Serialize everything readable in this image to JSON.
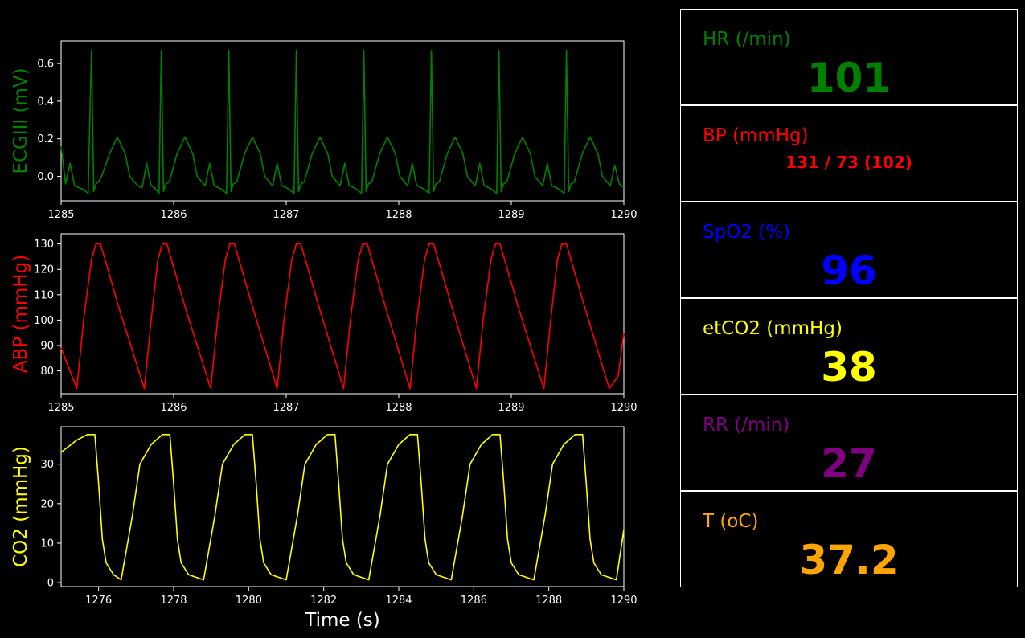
{
  "colors": {
    "ecg": "#008000",
    "abp": "#ff0000",
    "co2": "#ffff00",
    "spo2": "#0000ff",
    "rr": "#800080",
    "temp": "#ffa500",
    "axis": "#ffffff",
    "background": "#000000"
  },
  "chart_data": [
    {
      "id": "ecg",
      "type": "line",
      "ylabel": "ECGIII (mV)",
      "xlim": [
        1285,
        1290
      ],
      "ylim": [
        -0.13,
        0.72
      ],
      "xticks": [
        1285,
        1286,
        1287,
        1288,
        1289,
        1290
      ],
      "yticks": [
        0.0,
        0.2,
        0.4,
        0.6
      ],
      "ytick_labels": [
        "0.0",
        "0.2",
        "0.4",
        "0.6"
      ],
      "series": [
        {
          "color": "#008000",
          "x": [
            1285.0,
            1285.04,
            1285.08,
            1285.12,
            1285.16,
            1285.2,
            1285.24,
            1285.27,
            1285.29,
            1285.31,
            1285.33,
            1285.36,
            1285.43,
            1285.5,
            1285.57,
            1285.61,
            1285.68,
            1285.72,
            1285.76,
            1285.8,
            1285.83,
            1285.87,
            1285.89,
            1285.91,
            1285.93,
            1285.96,
            1286.03,
            1286.1,
            1286.17,
            1286.21,
            1286.28,
            1286.32,
            1286.36,
            1286.4,
            1286.43,
            1286.47,
            1286.49,
            1286.51,
            1286.53,
            1286.56,
            1286.63,
            1286.7,
            1286.77,
            1286.81,
            1286.88,
            1286.92,
            1286.96,
            1287.0,
            1287.03,
            1287.07,
            1287.09,
            1287.11,
            1287.13,
            1287.16,
            1287.23,
            1287.3,
            1287.37,
            1287.41,
            1287.48,
            1287.52,
            1287.56,
            1287.6,
            1287.63,
            1287.67,
            1287.69,
            1287.71,
            1287.73,
            1287.76,
            1287.83,
            1287.9,
            1287.97,
            1288.01,
            1288.08,
            1288.12,
            1288.16,
            1288.2,
            1288.23,
            1288.27,
            1288.29,
            1288.31,
            1288.33,
            1288.36,
            1288.43,
            1288.5,
            1288.57,
            1288.61,
            1288.68,
            1288.72,
            1288.76,
            1288.8,
            1288.83,
            1288.87,
            1288.89,
            1288.91,
            1288.93,
            1288.96,
            1289.03,
            1289.1,
            1289.17,
            1289.21,
            1289.28,
            1289.32,
            1289.36,
            1289.4,
            1289.43,
            1289.47,
            1289.49,
            1289.51,
            1289.53,
            1289.56,
            1289.63,
            1289.7,
            1289.77,
            1289.81,
            1289.88,
            1289.92,
            1289.96,
            1290.0
          ],
          "y": [
            0.16,
            -0.04,
            0.07,
            -0.05,
            -0.06,
            -0.07,
            -0.09,
            0.67,
            -0.08,
            -0.04,
            -0.03,
            0.0,
            0.12,
            0.21,
            0.12,
            0.0,
            -0.05,
            -0.06,
            0.07,
            -0.05,
            -0.06,
            -0.09,
            0.67,
            -0.08,
            -0.04,
            -0.03,
            0.12,
            0.21,
            0.12,
            0.0,
            -0.05,
            0.07,
            -0.05,
            -0.06,
            -0.07,
            -0.09,
            0.67,
            -0.08,
            -0.04,
            -0.03,
            0.12,
            0.21,
            0.12,
            0.0,
            -0.05,
            0.07,
            -0.05,
            -0.06,
            -0.07,
            -0.09,
            0.67,
            -0.08,
            -0.04,
            -0.03,
            0.12,
            0.21,
            0.12,
            0.0,
            -0.05,
            0.07,
            -0.05,
            -0.06,
            -0.07,
            -0.09,
            0.67,
            -0.08,
            -0.04,
            -0.03,
            0.12,
            0.21,
            0.12,
            0.0,
            -0.05,
            0.07,
            -0.05,
            -0.06,
            -0.07,
            -0.09,
            0.67,
            -0.08,
            -0.04,
            -0.03,
            0.12,
            0.21,
            0.12,
            0.0,
            -0.05,
            0.07,
            -0.05,
            -0.06,
            -0.07,
            -0.09,
            0.67,
            -0.08,
            -0.04,
            -0.03,
            0.12,
            0.21,
            0.12,
            0.0,
            -0.05,
            0.07,
            -0.05,
            -0.06,
            -0.07,
            -0.09,
            0.67,
            -0.08,
            -0.04,
            -0.03,
            0.12,
            0.21,
            0.12,
            0.0,
            -0.05,
            0.06,
            -0.04,
            -0.06
          ]
        }
      ]
    },
    {
      "id": "abp",
      "type": "line",
      "ylabel": "ABP (mmHg)",
      "xlim": [
        1285,
        1290
      ],
      "ylim": [
        71,
        134
      ],
      "xticks": [
        1285,
        1286,
        1287,
        1288,
        1289,
        1290
      ],
      "yticks": [
        80,
        90,
        100,
        110,
        120,
        130
      ],
      "series": [
        {
          "color": "#ff0000",
          "x": [
            1285.0,
            1285.14,
            1285.2,
            1285.27,
            1285.31,
            1285.35,
            1285.52,
            1285.74,
            1285.8,
            1285.86,
            1285.9,
            1285.94,
            1286.11,
            1286.33,
            1286.39,
            1286.46,
            1286.5,
            1286.54,
            1286.71,
            1286.92,
            1286.98,
            1287.05,
            1287.09,
            1287.13,
            1287.3,
            1287.51,
            1287.57,
            1287.64,
            1287.68,
            1287.72,
            1287.89,
            1288.1,
            1288.16,
            1288.23,
            1288.27,
            1288.31,
            1288.48,
            1288.69,
            1288.75,
            1288.82,
            1288.86,
            1288.9,
            1289.07,
            1289.29,
            1289.35,
            1289.41,
            1289.45,
            1289.49,
            1289.66,
            1289.87,
            1289.95,
            1290.0
          ],
          "y": [
            89,
            73,
            100,
            124,
            130,
            130,
            104,
            73,
            100,
            124,
            130,
            130,
            104,
            73,
            100,
            124,
            130,
            130,
            104,
            73,
            100,
            124,
            130,
            130,
            104,
            73,
            100,
            124,
            130,
            130,
            104,
            73,
            100,
            124,
            130,
            130,
            104,
            73,
            100,
            124,
            130,
            130,
            104,
            73,
            100,
            124,
            130,
            130,
            104,
            73,
            78,
            95
          ]
        }
      ]
    },
    {
      "id": "co2",
      "type": "line",
      "ylabel": "CO2 (mmHg)",
      "xlabel": "Time (s)",
      "xlim": [
        1275,
        1290
      ],
      "ylim": [
        -1,
        39.5
      ],
      "xticks": [
        1276,
        1278,
        1280,
        1282,
        1284,
        1286,
        1288,
        1290
      ],
      "yticks": [
        0,
        10,
        20,
        30
      ],
      "series": [
        {
          "color": "#ffff00",
          "x": [
            1275.0,
            1275.4,
            1275.7,
            1275.9,
            1276.0,
            1276.1,
            1276.2,
            1276.4,
            1276.6,
            1276.9,
            1277.1,
            1277.4,
            1277.7,
            1277.9,
            1278.0,
            1278.1,
            1278.2,
            1278.4,
            1278.8,
            1279.1,
            1279.3,
            1279.6,
            1279.9,
            1280.1,
            1280.2,
            1280.3,
            1280.4,
            1280.6,
            1281.0,
            1281.3,
            1281.5,
            1281.8,
            1282.1,
            1282.3,
            1282.4,
            1282.5,
            1282.6,
            1282.8,
            1283.2,
            1283.5,
            1283.7,
            1284.0,
            1284.3,
            1284.5,
            1284.6,
            1284.7,
            1284.8,
            1285.0,
            1285.4,
            1285.7,
            1285.9,
            1286.2,
            1286.5,
            1286.7,
            1286.8,
            1286.9,
            1287.0,
            1287.2,
            1287.6,
            1287.9,
            1288.1,
            1288.4,
            1288.7,
            1288.9,
            1289.0,
            1289.1,
            1289.2,
            1289.4,
            1289.8,
            1290.0
          ],
          "y": [
            33,
            36,
            37.5,
            37.5,
            25,
            11,
            5,
            2,
            0.7,
            17,
            30,
            35,
            37.5,
            37.5,
            25,
            11,
            5,
            2,
            0.7,
            17,
            30,
            35,
            37.5,
            37.5,
            25,
            11,
            5,
            2,
            0.7,
            17,
            30,
            35,
            37.5,
            37.5,
            25,
            11,
            5,
            2,
            0.7,
            17,
            30,
            35,
            37.5,
            37.5,
            25,
            11,
            5,
            2,
            0.7,
            17,
            30,
            35,
            37.5,
            37.5,
            25,
            11,
            5,
            2,
            0.7,
            17,
            30,
            35,
            37.5,
            37.5,
            25,
            11,
            5,
            2,
            0.7,
            13.5
          ]
        }
      ]
    }
  ],
  "vitals": [
    {
      "id": "hr",
      "label": "HR (/min)",
      "value": "101",
      "color": "#008000"
    },
    {
      "id": "bp",
      "label": "BP  (mmHg)",
      "value": "131 / 73 (102)",
      "color": "#ff0000"
    },
    {
      "id": "spo2",
      "label": "SpO2 (%)",
      "value": "96",
      "color": "#0000ff"
    },
    {
      "id": "etco2",
      "label": "etCO2 (mmHg)",
      "value": "38",
      "color": "#ffff00"
    },
    {
      "id": "rr",
      "label": "RR (/min)",
      "value": "27",
      "color": "#800080"
    },
    {
      "id": "temp",
      "label": "T (oC)",
      "value": "37.2",
      "color": "#ffa500"
    }
  ]
}
